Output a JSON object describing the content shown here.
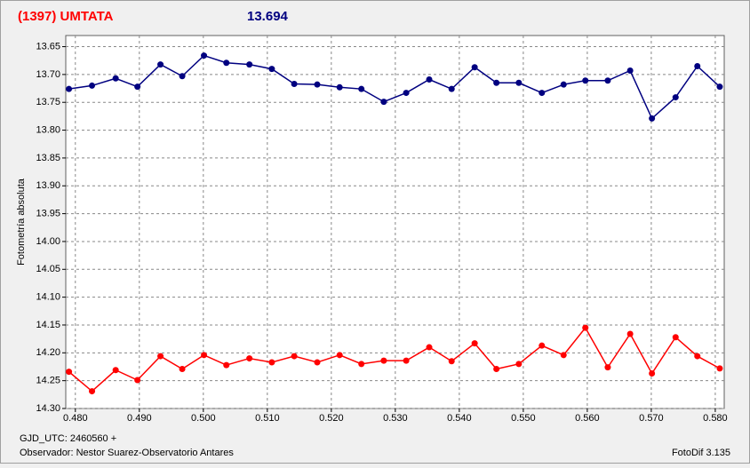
{
  "chart_data": {
    "type": "line",
    "title": "(1397) UMTATA",
    "subtitle": "13.694",
    "y_label": "Fotometría absoluta",
    "x_label": "GJD_UTC: 2460560 +",
    "observer": "Observador: Nestor Suarez-Observatorio Antares",
    "software": "FotoDif 3.135",
    "grid": true,
    "xlim": [
      0.4785,
      0.5814
    ],
    "ylim": [
      14.3,
      13.63
    ],
    "xticks": [
      {
        "value": 0.48,
        "label": "0.480"
      },
      {
        "value": 0.49,
        "label": "0.490"
      },
      {
        "value": 0.5,
        "label": "0.500"
      },
      {
        "value": 0.51,
        "label": "0.510"
      },
      {
        "value": 0.52,
        "label": "0.520"
      },
      {
        "value": 0.53,
        "label": "0.530"
      },
      {
        "value": 0.54,
        "label": "0.540"
      },
      {
        "value": 0.55,
        "label": "0.550"
      },
      {
        "value": 0.56,
        "label": "0.560"
      },
      {
        "value": 0.57,
        "label": "0.570"
      },
      {
        "value": 0.58,
        "label": "0.580"
      }
    ],
    "yticks": [
      {
        "value": 13.65,
        "label": "13.65"
      },
      {
        "value": 13.7,
        "label": "13.70"
      },
      {
        "value": 13.75,
        "label": "13.75"
      },
      {
        "value": 13.8,
        "label": "13.80"
      },
      {
        "value": 13.85,
        "label": "13.85"
      },
      {
        "value": 13.9,
        "label": "13.90"
      },
      {
        "value": 13.95,
        "label": "13.95"
      },
      {
        "value": 14.0,
        "label": "14.00"
      },
      {
        "value": 14.05,
        "label": "14.05"
      },
      {
        "value": 14.1,
        "label": "14.10"
      },
      {
        "value": 14.15,
        "label": "14.15"
      },
      {
        "value": 14.2,
        "label": "14.20"
      },
      {
        "value": 14.25,
        "label": "14.25"
      },
      {
        "value": 14.3,
        "label": "14.30"
      }
    ],
    "x": [
      0.479,
      0.4826,
      0.4863,
      0.4897,
      0.4933,
      0.4967,
      0.5001,
      0.5036,
      0.5072,
      0.5107,
      0.5142,
      0.5178,
      0.5213,
      0.5247,
      0.5282,
      0.5317,
      0.5353,
      0.5388,
      0.5424,
      0.5458,
      0.5493,
      0.5529,
      0.5563,
      0.5597,
      0.5632,
      0.5667,
      0.5701,
      0.5738,
      0.5772,
      0.5807
    ],
    "series": [
      {
        "color": "#000080",
        "values": [
          13.726,
          13.72,
          13.707,
          13.722,
          13.682,
          13.703,
          13.666,
          13.679,
          13.682,
          13.69,
          13.717,
          13.718,
          13.723,
          13.726,
          13.749,
          13.733,
          13.709,
          13.726,
          13.687,
          13.715,
          13.715,
          13.733,
          13.718,
          13.711,
          13.711,
          13.693,
          13.779,
          13.741,
          13.685,
          13.722
        ]
      },
      {
        "color": "#ff0000",
        "values": [
          14.234,
          14.269,
          14.231,
          14.249,
          14.206,
          14.229,
          14.204,
          14.222,
          14.21,
          14.217,
          14.206,
          14.217,
          14.204,
          14.22,
          14.214,
          14.214,
          14.19,
          14.215,
          14.183,
          14.229,
          14.22,
          14.187,
          14.204,
          14.155,
          14.226,
          14.166,
          14.237,
          14.172,
          14.206,
          14.228
        ]
      }
    ]
  }
}
